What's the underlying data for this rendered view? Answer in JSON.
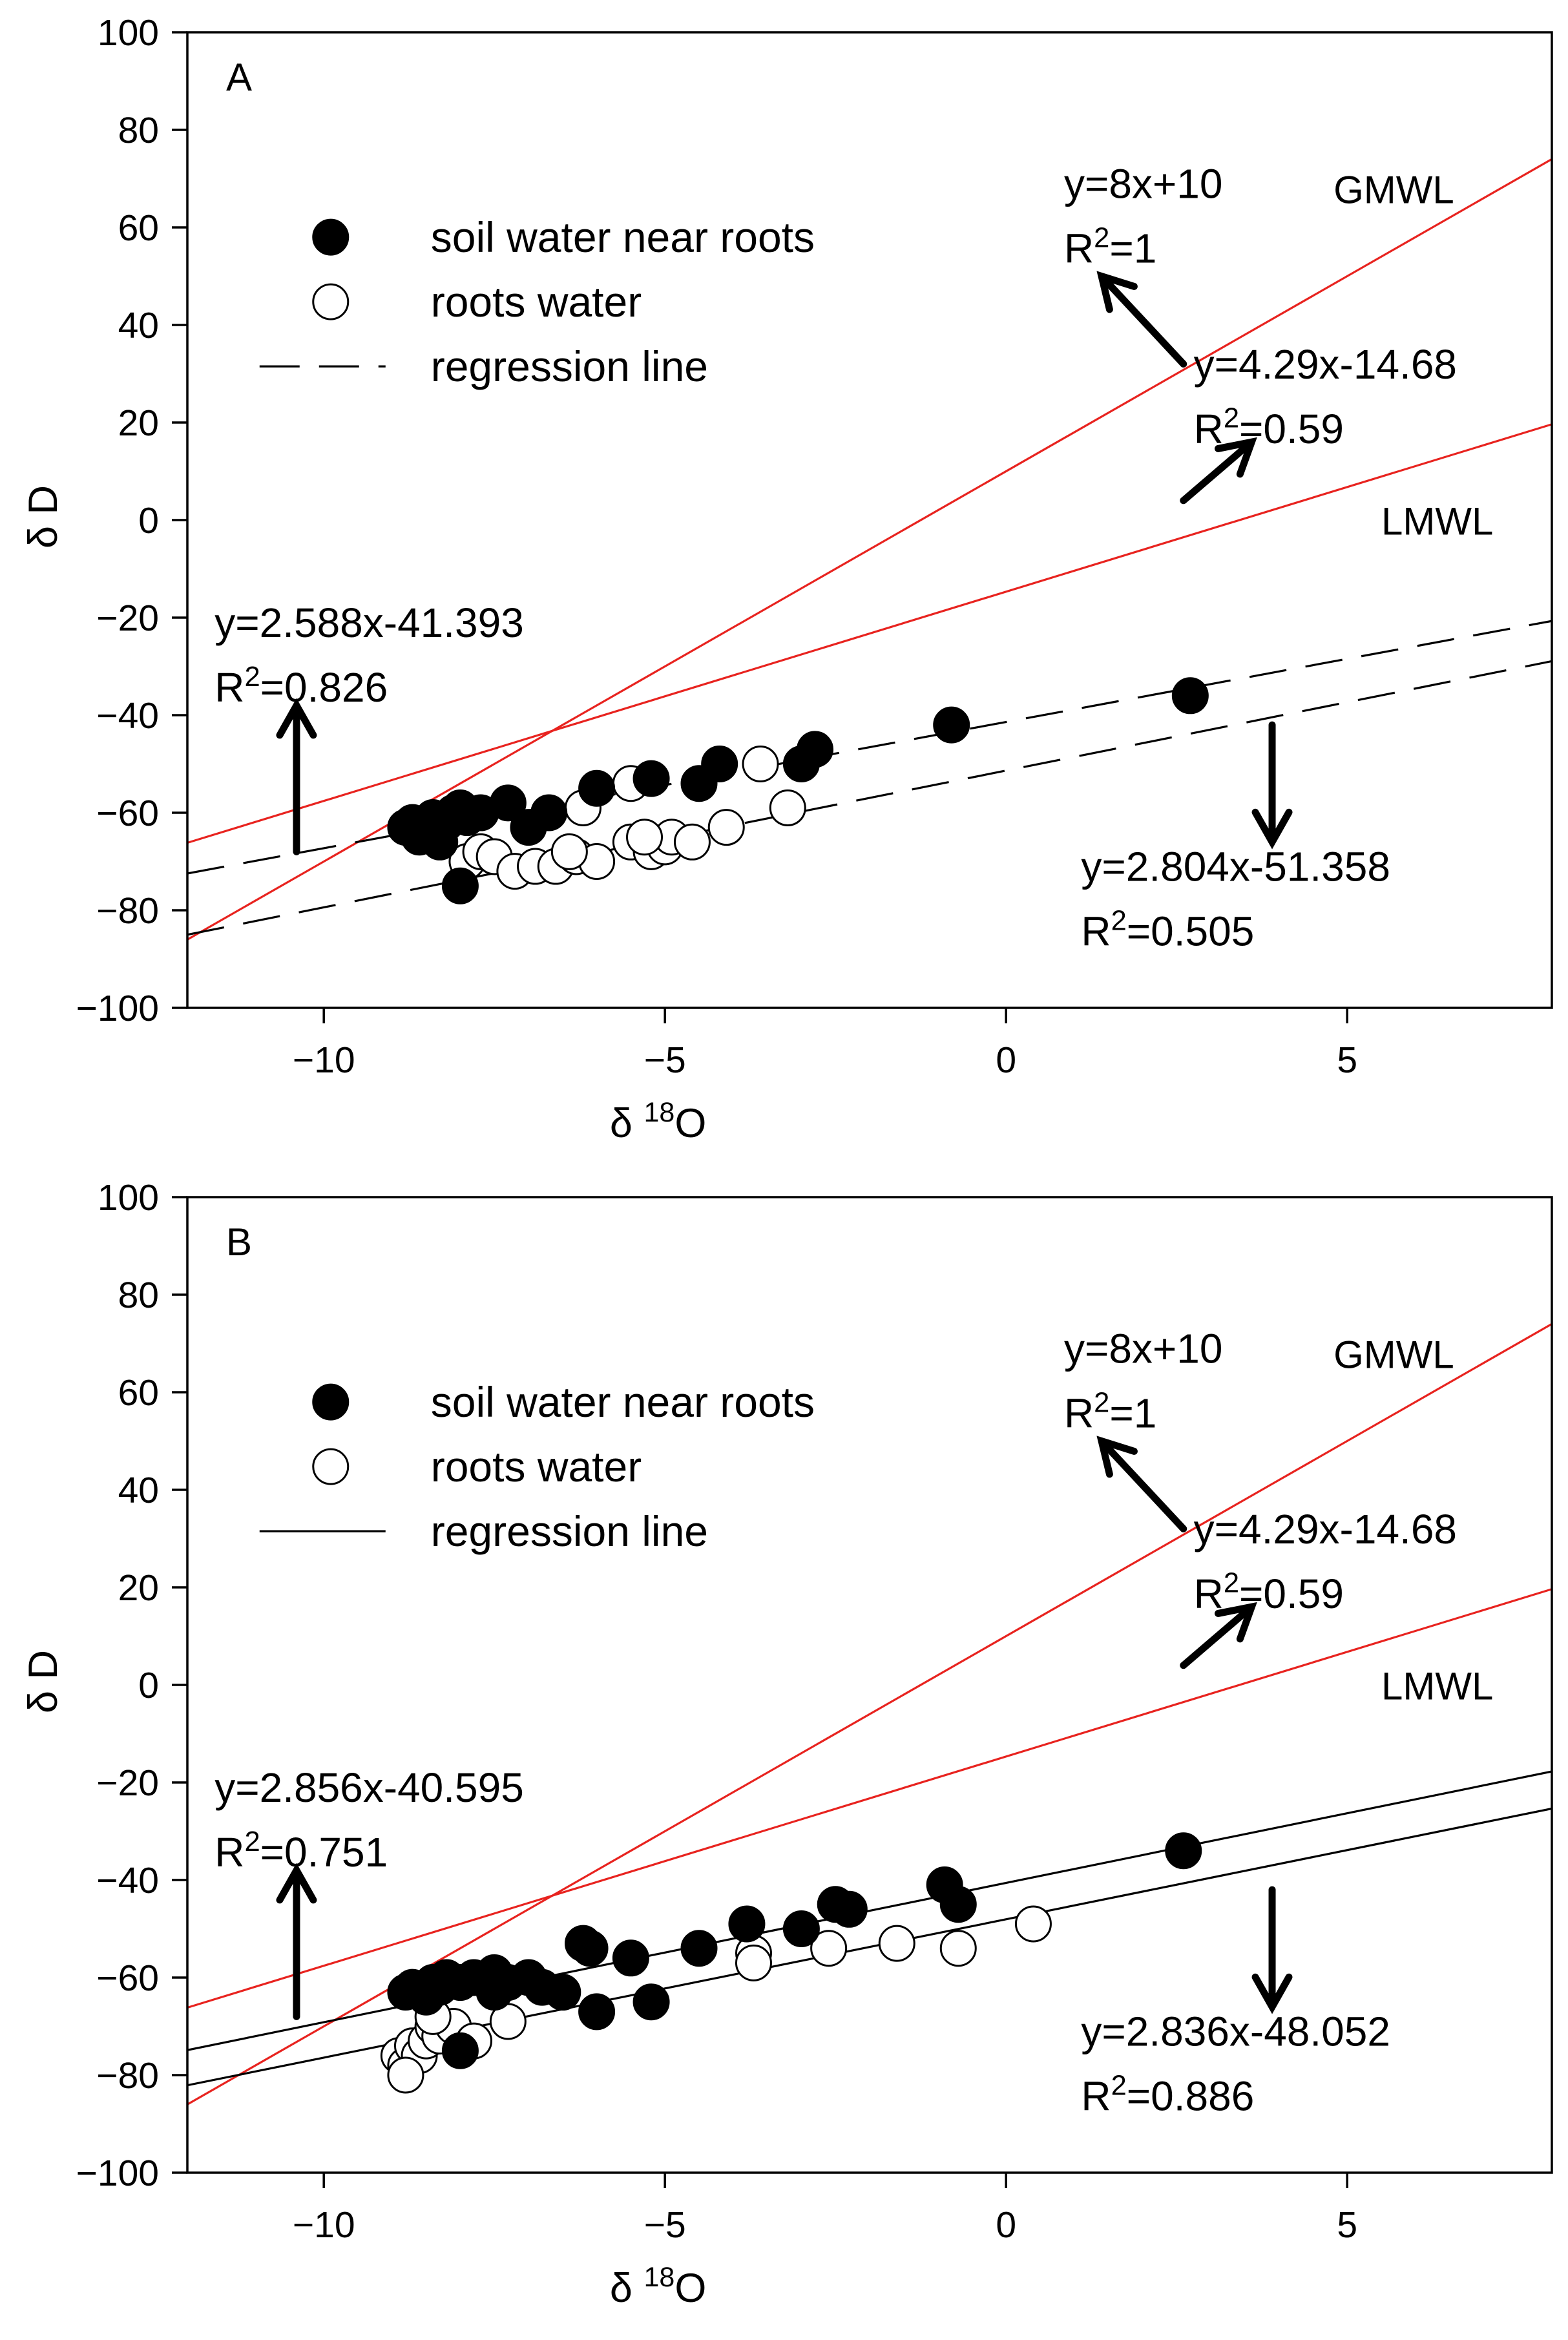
{
  "chart_data": [
    {
      "type": "scatter",
      "panel_label": "A",
      "xlabel": "δ 18O",
      "xlabel_main": "δ ",
      "xlabel_sup": "18",
      "xlabel_tail": "O",
      "ylabel": "δ D",
      "xlim": [
        -12,
        8
      ],
      "ylim": [
        -100,
        100
      ],
      "xticks": [
        -10,
        -5,
        0,
        5
      ],
      "yticks": [
        -100,
        -80,
        -60,
        -40,
        -20,
        0,
        20,
        40,
        60,
        80,
        100
      ],
      "x_tick_labels": [
        "−10",
        "−5",
        "0",
        "5"
      ],
      "y_tick_labels": [
        "−100",
        "−80",
        "−60",
        "−40",
        "−20",
        "0",
        "20",
        "40",
        "60",
        "80",
        "100"
      ],
      "legend": {
        "position": "top-left",
        "items": [
          {
            "label": "soil water near roots",
            "marker": "filled-circle"
          },
          {
            "label": "roots water",
            "marker": "open-circle"
          },
          {
            "label": "regression line",
            "marker": "dashed-line"
          }
        ]
      },
      "reference_lines": [
        {
          "name": "GMWL",
          "slope": 8,
          "intercept": 10,
          "color": "#e8231f"
        },
        {
          "name": "LMWL",
          "slope": 4.29,
          "intercept": -14.68,
          "color": "#e8231f"
        }
      ],
      "regression_lines": [
        {
          "name": "soil water near roots",
          "slope": 2.588,
          "intercept": -41.393,
          "style": "dashed"
        },
        {
          "name": "roots water",
          "slope": 2.804,
          "intercept": -51.358,
          "style": "dashed"
        }
      ],
      "annotations": [
        {
          "id": "gmwl",
          "line1": "y=8x+10",
          "r2_prefix": "R",
          "r2_sup": "2",
          "r2_value": "=1"
        },
        {
          "id": "lmwl",
          "line1": "y=4.29x-14.68",
          "r2_prefix": "R",
          "r2_sup": "2",
          "r2_value": "=0.59"
        },
        {
          "id": "soil",
          "line1": "y=2.588x-41.393",
          "r2_prefix": "R",
          "r2_sup": "2",
          "r2_value": "=0.826"
        },
        {
          "id": "roots",
          "line1": "y=2.804x-51.358",
          "r2_prefix": "R",
          "r2_sup": "2",
          "r2_value": "=0.505"
        }
      ],
      "series": [
        {
          "name": "soil water near roots",
          "marker": "filled",
          "points": [
            [
              -8.8,
              -63
            ],
            [
              -8.7,
              -62
            ],
            [
              -8.6,
              -65
            ],
            [
              -8.5,
              -63
            ],
            [
              -8.4,
              -61
            ],
            [
              -8.3,
              -66
            ],
            [
              -8.2,
              -62
            ],
            [
              -8.1,
              -60
            ],
            [
              -8.0,
              -59
            ],
            [
              -7.9,
              -61
            ],
            [
              -7.7,
              -60
            ],
            [
              -7.3,
              -58
            ],
            [
              -7.0,
              -63
            ],
            [
              -6.7,
              -60
            ],
            [
              -8.0,
              -75
            ],
            [
              -6.0,
              -55
            ],
            [
              -5.2,
              -53
            ],
            [
              -4.5,
              -54
            ],
            [
              -4.2,
              -50
            ],
            [
              -3.0,
              -50
            ],
            [
              -2.8,
              -47
            ],
            [
              -0.8,
              -42
            ],
            [
              2.7,
              -36
            ]
          ]
        },
        {
          "name": "roots water",
          "marker": "open",
          "points": [
            [
              -7.9,
              -70
            ],
            [
              -7.7,
              -68
            ],
            [
              -7.5,
              -69
            ],
            [
              -7.2,
              -72
            ],
            [
              -6.9,
              -71
            ],
            [
              -6.6,
              -71
            ],
            [
              -6.3,
              -69
            ],
            [
              -6.0,
              -70
            ],
            [
              -5.5,
              -66
            ],
            [
              -5.2,
              -68
            ],
            [
              -5.0,
              -67
            ],
            [
              -4.9,
              -65
            ],
            [
              -4.6,
              -66
            ],
            [
              -4.1,
              -63
            ],
            [
              -5.5,
              -54
            ],
            [
              -6.2,
              -59
            ],
            [
              -3.6,
              -50
            ],
            [
              -3.2,
              -59
            ],
            [
              -6.4,
              -68
            ],
            [
              -5.3,
              -65
            ]
          ]
        }
      ]
    },
    {
      "type": "scatter",
      "panel_label": "B",
      "xlabel": "δ 18O",
      "xlabel_main": "δ ",
      "xlabel_sup": "18",
      "xlabel_tail": "O",
      "ylabel": "δ D",
      "xlim": [
        -12,
        8
      ],
      "ylim": [
        -100,
        100
      ],
      "xticks": [
        -10,
        -5,
        0,
        5
      ],
      "yticks": [
        -100,
        -80,
        -60,
        -40,
        -20,
        0,
        20,
        40,
        60,
        80,
        100
      ],
      "x_tick_labels": [
        "−10",
        "−5",
        "0",
        "5"
      ],
      "y_tick_labels": [
        "−100",
        "−80",
        "−60",
        "−40",
        "−20",
        "0",
        "20",
        "40",
        "60",
        "80",
        "100"
      ],
      "legend": {
        "position": "top-left",
        "items": [
          {
            "label": "soil water near roots",
            "marker": "filled-circle"
          },
          {
            "label": "roots water",
            "marker": "open-circle"
          },
          {
            "label": "regression line",
            "marker": "solid-line"
          }
        ]
      },
      "reference_lines": [
        {
          "name": "GMWL",
          "slope": 8,
          "intercept": 10,
          "color": "#e8231f"
        },
        {
          "name": "LMWL",
          "slope": 4.29,
          "intercept": -14.68,
          "color": "#e8231f"
        }
      ],
      "regression_lines": [
        {
          "name": "soil water near roots",
          "slope": 2.856,
          "intercept": -40.595,
          "style": "solid"
        },
        {
          "name": "roots water",
          "slope": 2.836,
          "intercept": -48.052,
          "style": "solid"
        }
      ],
      "annotations": [
        {
          "id": "gmwl",
          "line1": "y=8x+10",
          "r2_prefix": "R",
          "r2_sup": "2",
          "r2_value": "=1"
        },
        {
          "id": "lmwl",
          "line1": "y=4.29x-14.68",
          "r2_prefix": "R",
          "r2_sup": "2",
          "r2_value": "=0.59"
        },
        {
          "id": "soil",
          "line1": "y=2.856x-40.595",
          "r2_prefix": "R",
          "r2_sup": "2",
          "r2_value": "=0.751"
        },
        {
          "id": "roots",
          "line1": "y=2.836x-48.052",
          "r2_prefix": "R",
          "r2_sup": "2",
          "r2_value": "=0.886"
        }
      ],
      "series": [
        {
          "name": "soil water near roots",
          "marker": "filled",
          "points": [
            [
              -8.8,
              -63
            ],
            [
              -8.7,
              -62
            ],
            [
              -8.5,
              -64
            ],
            [
              -8.4,
              -61
            ],
            [
              -8.3,
              -62
            ],
            [
              -8.2,
              -60
            ],
            [
              -8.0,
              -61
            ],
            [
              -7.8,
              -60
            ],
            [
              -7.5,
              -59
            ],
            [
              -7.3,
              -61
            ],
            [
              -7.0,
              -60
            ],
            [
              -6.8,
              -62
            ],
            [
              -6.5,
              -63
            ],
            [
              -8.0,
              -75
            ],
            [
              -6.2,
              -53
            ],
            [
              -6.1,
              -54
            ],
            [
              -5.5,
              -56
            ],
            [
              -4.5,
              -54
            ],
            [
              -3.8,
              -49
            ],
            [
              -3.0,
              -50
            ],
            [
              -2.5,
              -45
            ],
            [
              -2.3,
              -46
            ],
            [
              -0.9,
              -41
            ],
            [
              -0.7,
              -45
            ],
            [
              -6.0,
              -67
            ],
            [
              -5.2,
              -65
            ],
            [
              -7.5,
              -63
            ],
            [
              2.6,
              -34
            ]
          ]
        },
        {
          "name": "roots water",
          "marker": "open",
          "points": [
            [
              -8.9,
              -76
            ],
            [
              -8.8,
              -78
            ],
            [
              -8.7,
              -74
            ],
            [
              -8.6,
              -76
            ],
            [
              -8.5,
              -73
            ],
            [
              -8.4,
              -70
            ],
            [
              -8.3,
              -72
            ],
            [
              -8.1,
              -70
            ],
            [
              -7.8,
              -73
            ],
            [
              -7.3,
              -69
            ],
            [
              -8.8,
              -80
            ],
            [
              -8.4,
              -68
            ],
            [
              -3.7,
              -55
            ],
            [
              -3.7,
              -57
            ],
            [
              -2.6,
              -54
            ],
            [
              -1.6,
              -53
            ],
            [
              -0.7,
              -54
            ],
            [
              0.4,
              -49
            ]
          ]
        }
      ]
    }
  ]
}
